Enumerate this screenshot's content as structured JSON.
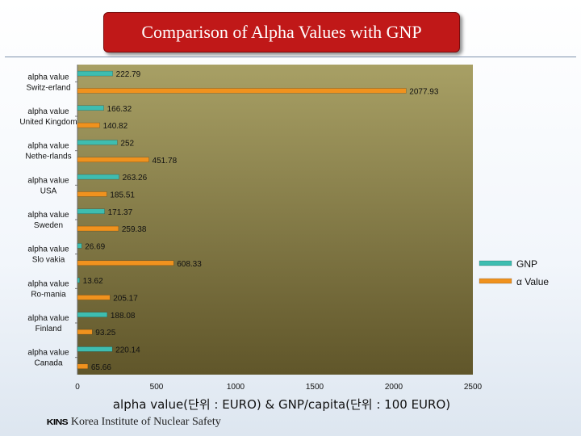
{
  "title": "Comparison of Alpha Values with GNP",
  "footer": {
    "logo": "KINS",
    "institute": "Korea Institute of Nuclear Safety"
  },
  "colors": {
    "plot_bg_top": "#a8a065",
    "plot_bg_bottom": "#60562a",
    "gnp": "#3ebdb0",
    "alpha": "#f0921e"
  },
  "chart_data": {
    "type": "bar",
    "orientation": "horizontal",
    "title": "Comparison of Alpha Values with GNP",
    "xlabel": "alpha value(단위 : EURO) & GNP/capita(단위 : 100 EURO)",
    "ylabel": "",
    "xlim": [
      0,
      2500
    ],
    "xticks": [
      "0",
      "500",
      "1000",
      "1500",
      "2000",
      "2500"
    ],
    "categories": [
      [
        "alpha value",
        "Switz-erland"
      ],
      [
        "alpha value",
        "United Kingdom"
      ],
      [
        "alpha value",
        "Nethe-rlands"
      ],
      [
        "alpha value",
        "USA"
      ],
      [
        "alpha value",
        "Sweden"
      ],
      [
        "alpha value",
        "Slo vakia"
      ],
      [
        "alpha value",
        "Ro-mania"
      ],
      [
        "alpha value",
        "Finland"
      ],
      [
        "alpha value",
        "Canada"
      ]
    ],
    "series": [
      {
        "name": "GNP",
        "color": "#3ebdb0",
        "values": [
          222.79,
          166.32,
          252,
          263.26,
          171.37,
          26.69,
          13.62,
          188.08,
          220.14
        ],
        "labels": [
          "222.79",
          "166.32",
          "252",
          "263.26",
          "171.37",
          "26.69",
          "13.62",
          "188.08",
          "220.14"
        ]
      },
      {
        "name": "α Value",
        "color": "#f0921e",
        "values": [
          2077.93,
          140.82,
          451.78,
          185.51,
          259.38,
          608.33,
          205.17,
          93.25,
          65.66
        ],
        "labels": [
          "2077.93",
          "140.82",
          "451.78",
          "185.51",
          "259.38",
          "608.33",
          "205.17",
          "93.25",
          "65.66"
        ]
      }
    ],
    "legend": "right",
    "grid": false
  }
}
